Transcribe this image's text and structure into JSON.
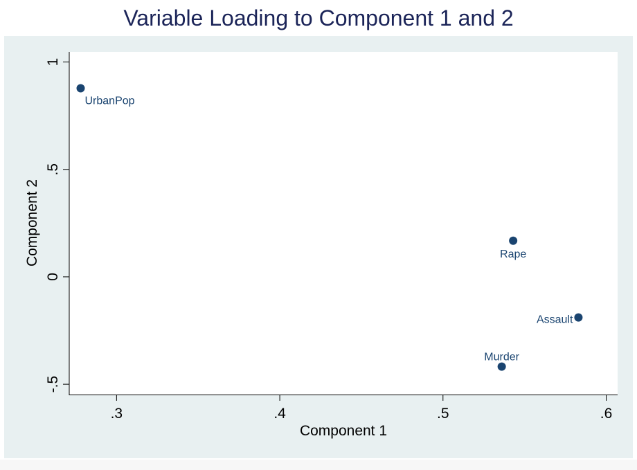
{
  "chart_data": {
    "type": "scatter",
    "title": "Variable Loading to Component 1 and 2",
    "xlabel": "Component 1",
    "ylabel": "Component 2",
    "xlim": [
      0.271,
      0.607
    ],
    "ylim": [
      -0.548,
      1.047
    ],
    "x_ticks": [
      {
        "value": 0.3,
        "label": ".3"
      },
      {
        "value": 0.4,
        "label": ".4"
      },
      {
        "value": 0.5,
        "label": ".5"
      },
      {
        "value": 0.6,
        "label": ".6"
      }
    ],
    "y_ticks": [
      {
        "value": -0.5,
        "label": "-.5"
      },
      {
        "value": 0,
        "label": "0"
      },
      {
        "value": 0.5,
        "label": ".5"
      },
      {
        "value": 1,
        "label": "1"
      }
    ],
    "points": [
      {
        "label": "UrbanPop",
        "x": 0.278,
        "y": 0.878,
        "label_pos": "below-right"
      },
      {
        "label": "Rape",
        "x": 0.543,
        "y": 0.168,
        "label_pos": "below"
      },
      {
        "label": "Assault",
        "x": 0.583,
        "y": -0.189,
        "label_pos": "left"
      },
      {
        "label": "Murder",
        "x": 0.536,
        "y": -0.418,
        "label_pos": "above"
      }
    ],
    "grid": false,
    "colors": {
      "marker": "#1a4470",
      "plot_bg": "#ffffff",
      "outer_bg": "#e8f0f1",
      "title": "#1b2458"
    }
  }
}
